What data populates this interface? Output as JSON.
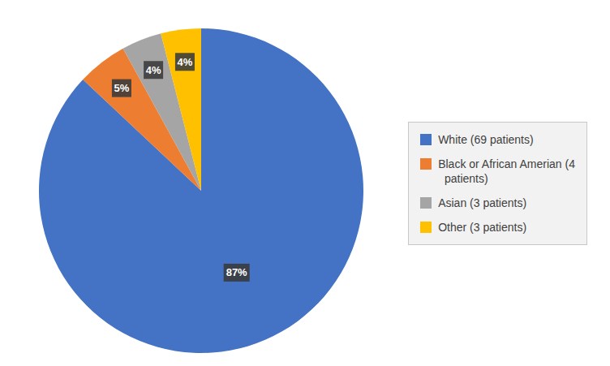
{
  "chart_data": {
    "type": "pie",
    "categories": [
      "White (69 patients)",
      "Black or African Amerian (4\n  patients)",
      "Asian (3 patients)",
      "Other (3 patients)"
    ],
    "values": [
      87,
      5,
      4,
      4
    ],
    "value_labels": [
      "87%",
      "5%",
      "4%",
      "4%"
    ],
    "data_labels": true,
    "colors": [
      "#4472C4",
      "#ED7D31",
      "#A5A5A5",
      "#FFC000"
    ],
    "legend": "right"
  }
}
